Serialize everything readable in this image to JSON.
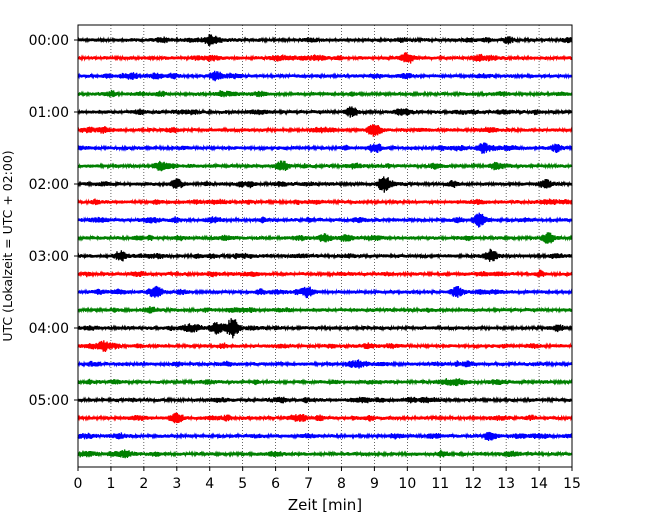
{
  "chart_data": {
    "type": "line",
    "title": "",
    "xlabel": "Zeit  [min]",
    "ylabel": "UTC (Lokalzeit = UTC + 02:00)",
    "xlim": [
      0,
      15
    ],
    "x_ticks": [
      "0",
      "1",
      "2",
      "3",
      "4",
      "5",
      "6",
      "7",
      "8",
      "9",
      "10",
      "11",
      "12",
      "13",
      "14",
      "15"
    ],
    "y_ticks": [
      "00:00",
      "01:00",
      "02:00",
      "03:00",
      "04:00",
      "05:00"
    ],
    "grid": "vertical dotted at each minute",
    "trace_count": 24,
    "trace_minutes": 15,
    "first_trace": "00:00",
    "trace_color_cycle": [
      "#000000",
      "#ff0000",
      "#0000ff",
      "#008000"
    ],
    "events": [
      {
        "trace": 0,
        "x": 4.0,
        "amp": 1.3
      },
      {
        "trace": 1,
        "x": 10.0,
        "amp": 1.7
      },
      {
        "trace": 2,
        "x": 4.2,
        "amp": 1.4
      },
      {
        "trace": 4,
        "x": 8.3,
        "amp": 1.5
      },
      {
        "trace": 5,
        "x": 9.0,
        "amp": 1.4
      },
      {
        "trace": 6,
        "x": 9.0,
        "amp": 1.3
      },
      {
        "trace": 6,
        "x": 12.3,
        "amp": 1.4
      },
      {
        "trace": 7,
        "x": 2.5,
        "amp": 1.3
      },
      {
        "trace": 7,
        "x": 6.2,
        "amp": 1.6
      },
      {
        "trace": 8,
        "x": 9.3,
        "amp": 2.6
      },
      {
        "trace": 8,
        "x": 3.0,
        "amp": 1.4
      },
      {
        "trace": 8,
        "x": 14.2,
        "amp": 1.3
      },
      {
        "trace": 10,
        "x": 12.2,
        "amp": 2.2
      },
      {
        "trace": 11,
        "x": 7.5,
        "amp": 1.3
      },
      {
        "trace": 11,
        "x": 14.3,
        "amp": 1.3
      },
      {
        "trace": 12,
        "x": 1.3,
        "amp": 1.5
      },
      {
        "trace": 12,
        "x": 12.5,
        "amp": 1.3
      },
      {
        "trace": 14,
        "x": 2.4,
        "amp": 1.4
      },
      {
        "trace": 14,
        "x": 7.0,
        "amp": 1.4
      },
      {
        "trace": 14,
        "x": 11.5,
        "amp": 1.5
      },
      {
        "trace": 16,
        "x": 4.2,
        "amp": 1.8
      },
      {
        "trace": 16,
        "x": 4.7,
        "amp": 2.6
      },
      {
        "trace": 17,
        "x": 0.8,
        "amp": 1.5
      },
      {
        "trace": 21,
        "x": 3.0,
        "amp": 1.5
      },
      {
        "trace": 22,
        "x": 12.5,
        "amp": 1.4
      }
    ]
  }
}
